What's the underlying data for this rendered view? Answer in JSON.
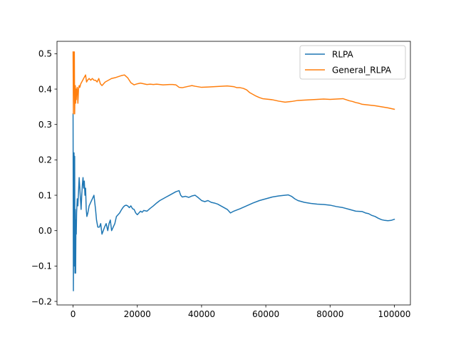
{
  "chart_data": {
    "type": "line",
    "title": "",
    "xlabel": "",
    "ylabel": "",
    "xlim": [
      -5000,
      105000
    ],
    "ylim": [
      -0.21,
      0.535
    ],
    "grid": false,
    "legend_position": "top-right",
    "x_ticks": [
      {
        "value": 0,
        "label": "0"
      },
      {
        "value": 20000,
        "label": "20000"
      },
      {
        "value": 40000,
        "label": "40000"
      },
      {
        "value": 60000,
        "label": "60000"
      },
      {
        "value": 80000,
        "label": "80000"
      },
      {
        "value": 100000,
        "label": "100000"
      }
    ],
    "y_ticks": [
      {
        "value": -0.2,
        "label": "−0.2"
      },
      {
        "value": -0.1,
        "label": "−0.1"
      },
      {
        "value": 0.0,
        "label": "0.0"
      },
      {
        "value": 0.1,
        "label": "0.1"
      },
      {
        "value": 0.2,
        "label": "0.2"
      },
      {
        "value": 0.3,
        "label": "0.3"
      },
      {
        "value": 0.4,
        "label": "0.4"
      },
      {
        "value": 0.5,
        "label": "0.5"
      }
    ],
    "series": [
      {
        "name": "RLPA",
        "color": "#1f77b4",
        "points": [
          [
            0,
            0.33
          ],
          [
            100,
            -0.17
          ],
          [
            200,
            0.1
          ],
          [
            300,
            0.22
          ],
          [
            400,
            -0.1
          ],
          [
            500,
            0.21
          ],
          [
            600,
            -0.12
          ],
          [
            700,
            0.06
          ],
          [
            800,
            -0.12
          ],
          [
            900,
            0.03
          ],
          [
            1000,
            -0.01
          ],
          [
            1100,
            0.05
          ],
          [
            1300,
            0.09
          ],
          [
            1500,
            0.07
          ],
          [
            1700,
            0.11
          ],
          [
            1900,
            0.15
          ],
          [
            2100,
            0.12
          ],
          [
            2300,
            0.09
          ],
          [
            2500,
            0.06
          ],
          [
            2700,
            0.1
          ],
          [
            2900,
            0.13
          ],
          [
            3100,
            0.15
          ],
          [
            3300,
            0.12
          ],
          [
            3500,
            0.14
          ],
          [
            3700,
            0.1
          ],
          [
            3900,
            0.12
          ],
          [
            4100,
            0.06
          ],
          [
            4300,
            0.04
          ],
          [
            4600,
            0.05
          ],
          [
            5000,
            0.07
          ],
          [
            5500,
            0.08
          ],
          [
            6000,
            0.09
          ],
          [
            6500,
            0.1
          ],
          [
            7000,
            0.06
          ],
          [
            7300,
            0.03
          ],
          [
            7700,
            0.01
          ],
          [
            8200,
            0.01
          ],
          [
            8600,
            0.02
          ],
          [
            9000,
            -0.01
          ],
          [
            9400,
            0.0
          ],
          [
            9800,
            0.01
          ],
          [
            10300,
            0.02
          ],
          [
            10800,
            0.0
          ],
          [
            11200,
            0.02
          ],
          [
            11600,
            0.03
          ],
          [
            12000,
            0.0
          ],
          [
            12500,
            0.01
          ],
          [
            13000,
            0.02
          ],
          [
            13500,
            0.04
          ],
          [
            14000,
            0.045
          ],
          [
            14500,
            0.05
          ],
          [
            15000,
            0.058
          ],
          [
            15500,
            0.065
          ],
          [
            16000,
            0.07
          ],
          [
            16500,
            0.072
          ],
          [
            17000,
            0.07
          ],
          [
            17500,
            0.065
          ],
          [
            18000,
            0.07
          ],
          [
            18500,
            0.062
          ],
          [
            19000,
            0.06
          ],
          [
            19500,
            0.05
          ],
          [
            20000,
            0.045
          ],
          [
            20500,
            0.05
          ],
          [
            21000,
            0.055
          ],
          [
            21500,
            0.052
          ],
          [
            22000,
            0.057
          ],
          [
            23000,
            0.055
          ],
          [
            24000,
            0.063
          ],
          [
            25000,
            0.07
          ],
          [
            26000,
            0.078
          ],
          [
            27000,
            0.085
          ],
          [
            28000,
            0.09
          ],
          [
            29000,
            0.095
          ],
          [
            30000,
            0.1
          ],
          [
            31000,
            0.105
          ],
          [
            32000,
            0.11
          ],
          [
            33000,
            0.113
          ],
          [
            33500,
            0.1
          ],
          [
            34000,
            0.095
          ],
          [
            35000,
            0.097
          ],
          [
            36000,
            0.094
          ],
          [
            37000,
            0.098
          ],
          [
            38000,
            0.1
          ],
          [
            39000,
            0.093
          ],
          [
            40000,
            0.085
          ],
          [
            41000,
            0.082
          ],
          [
            42000,
            0.085
          ],
          [
            43000,
            0.08
          ],
          [
            44000,
            0.078
          ],
          [
            45000,
            0.075
          ],
          [
            46000,
            0.07
          ],
          [
            47000,
            0.065
          ],
          [
            48000,
            0.06
          ],
          [
            49000,
            0.05
          ],
          [
            50000,
            0.055
          ],
          [
            52000,
            0.062
          ],
          [
            54000,
            0.07
          ],
          [
            56000,
            0.078
          ],
          [
            58000,
            0.085
          ],
          [
            60000,
            0.09
          ],
          [
            62000,
            0.095
          ],
          [
            64000,
            0.098
          ],
          [
            66000,
            0.1
          ],
          [
            67000,
            0.101
          ],
          [
            68000,
            0.097
          ],
          [
            69000,
            0.09
          ],
          [
            70000,
            0.085
          ],
          [
            72000,
            0.08
          ],
          [
            74000,
            0.077
          ],
          [
            76000,
            0.075
          ],
          [
            78000,
            0.074
          ],
          [
            80000,
            0.072
          ],
          [
            82000,
            0.068
          ],
          [
            84000,
            0.065
          ],
          [
            86000,
            0.06
          ],
          [
            88000,
            0.055
          ],
          [
            90000,
            0.054
          ],
          [
            91000,
            0.05
          ],
          [
            92000,
            0.048
          ],
          [
            93000,
            0.043
          ],
          [
            94000,
            0.04
          ],
          [
            95000,
            0.035
          ],
          [
            96000,
            0.031
          ],
          [
            97000,
            0.029
          ],
          [
            98000,
            0.028
          ],
          [
            99000,
            0.029
          ],
          [
            100000,
            0.032
          ]
        ]
      },
      {
        "name": "General_RLPA",
        "color": "#ff7f0e",
        "points": [
          [
            0,
            0.505
          ],
          [
            100,
            0.33
          ],
          [
            200,
            0.5
          ],
          [
            300,
            0.505
          ],
          [
            400,
            0.505
          ],
          [
            500,
            0.33
          ],
          [
            600,
            0.39
          ],
          [
            700,
            0.41
          ],
          [
            800,
            0.36
          ],
          [
            900,
            0.4
          ],
          [
            1000,
            0.37
          ],
          [
            1100,
            0.395
          ],
          [
            1300,
            0.405
          ],
          [
            1500,
            0.36
          ],
          [
            1700,
            0.4
          ],
          [
            1900,
            0.41
          ],
          [
            2100,
            0.405
          ],
          [
            2400,
            0.415
          ],
          [
            2700,
            0.42
          ],
          [
            3000,
            0.425
          ],
          [
            3300,
            0.43
          ],
          [
            3600,
            0.435
          ],
          [
            3900,
            0.44
          ],
          [
            4200,
            0.42
          ],
          [
            4500,
            0.425
          ],
          [
            5000,
            0.43
          ],
          [
            5500,
            0.425
          ],
          [
            6000,
            0.43
          ],
          [
            6500,
            0.425
          ],
          [
            7000,
            0.425
          ],
          [
            7500,
            0.42
          ],
          [
            8000,
            0.43
          ],
          [
            8500,
            0.415
          ],
          [
            9000,
            0.41
          ],
          [
            9500,
            0.415
          ],
          [
            10000,
            0.42
          ],
          [
            11000,
            0.425
          ],
          [
            12000,
            0.43
          ],
          [
            13000,
            0.432
          ],
          [
            14000,
            0.435
          ],
          [
            15000,
            0.438
          ],
          [
            16000,
            0.44
          ],
          [
            17000,
            0.432
          ],
          [
            17500,
            0.425
          ],
          [
            18000,
            0.418
          ],
          [
            19000,
            0.412
          ],
          [
            20000,
            0.415
          ],
          [
            21000,
            0.417
          ],
          [
            22000,
            0.415
          ],
          [
            23000,
            0.413
          ],
          [
            24000,
            0.414
          ],
          [
            25000,
            0.413
          ],
          [
            26000,
            0.414
          ],
          [
            28000,
            0.412
          ],
          [
            30000,
            0.413
          ],
          [
            31000,
            0.413
          ],
          [
            32000,
            0.412
          ],
          [
            33000,
            0.405
          ],
          [
            34000,
            0.404
          ],
          [
            35000,
            0.406
          ],
          [
            36000,
            0.408
          ],
          [
            37000,
            0.41
          ],
          [
            38000,
            0.408
          ],
          [
            40000,
            0.405
          ],
          [
            42000,
            0.406
          ],
          [
            44000,
            0.407
          ],
          [
            46000,
            0.408
          ],
          [
            48000,
            0.409
          ],
          [
            50000,
            0.407
          ],
          [
            51000,
            0.404
          ],
          [
            52000,
            0.404
          ],
          [
            53000,
            0.402
          ],
          [
            54000,
            0.398
          ],
          [
            55000,
            0.39
          ],
          [
            56000,
            0.385
          ],
          [
            57000,
            0.38
          ],
          [
            58000,
            0.376
          ],
          [
            59000,
            0.373
          ],
          [
            60000,
            0.372
          ],
          [
            62000,
            0.37
          ],
          [
            64000,
            0.366
          ],
          [
            66000,
            0.363
          ],
          [
            68000,
            0.365
          ],
          [
            70000,
            0.368
          ],
          [
            72000,
            0.369
          ],
          [
            74000,
            0.37
          ],
          [
            76000,
            0.371
          ],
          [
            78000,
            0.372
          ],
          [
            80000,
            0.371
          ],
          [
            82000,
            0.372
          ],
          [
            84000,
            0.373
          ],
          [
            85000,
            0.37
          ],
          [
            86000,
            0.367
          ],
          [
            87000,
            0.365
          ],
          [
            88000,
            0.362
          ],
          [
            89000,
            0.36
          ],
          [
            90000,
            0.357
          ],
          [
            92000,
            0.355
          ],
          [
            94000,
            0.353
          ],
          [
            96000,
            0.35
          ],
          [
            98000,
            0.347
          ],
          [
            99000,
            0.345
          ],
          [
            100000,
            0.343
          ]
        ]
      }
    ]
  }
}
